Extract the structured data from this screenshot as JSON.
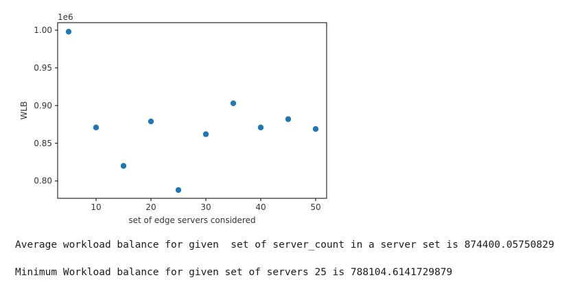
{
  "chart_data": {
    "type": "scatter",
    "xlabel": "set of edge servers considered",
    "ylabel": "WLB",
    "y_offset_text": "1e6",
    "xlim": [
      3,
      52
    ],
    "ylim": [
      0.777,
      1.01
    ],
    "x_ticks": [
      10,
      20,
      30,
      40,
      50
    ],
    "x_tick_labels": [
      "10",
      "20",
      "30",
      "40",
      "50"
    ],
    "y_ticks": [
      0.8,
      0.85,
      0.9,
      0.95,
      1.0
    ],
    "y_tick_labels": [
      "0.80",
      "0.85",
      "0.90",
      "0.95",
      "1.00"
    ],
    "grid": false,
    "point_color": "#1f77b4",
    "points": [
      {
        "x": 5,
        "y": 0.998
      },
      {
        "x": 10,
        "y": 0.871
      },
      {
        "x": 15,
        "y": 0.82
      },
      {
        "x": 20,
        "y": 0.879
      },
      {
        "x": 25,
        "y": 0.788
      },
      {
        "x": 30,
        "y": 0.862
      },
      {
        "x": 35,
        "y": 0.903
      },
      {
        "x": 40,
        "y": 0.871
      },
      {
        "x": 45,
        "y": 0.882
      },
      {
        "x": 50,
        "y": 0.869
      }
    ]
  },
  "output": {
    "line1": "Average workload balance for given  set of server_count in a server set is 874400.05750829",
    "line2": "Minimum Workload balance for given set of servers 25 is 788104.6141729879"
  }
}
